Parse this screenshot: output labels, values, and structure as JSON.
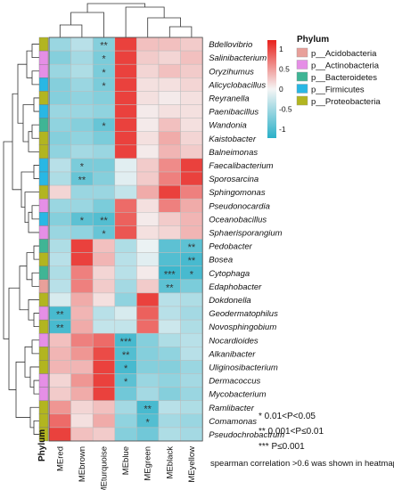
{
  "chart_data": {
    "type": "heatmap",
    "rows": [
      "Bdellovibrio",
      "Salinibacterium",
      "Oryzihumus",
      "Alicyclobacillus",
      "Reyranella",
      "Paenibacillus",
      "Wandonia",
      "Kaistobacter",
      "Balneimonas",
      "Faecalibacterium",
      "Sporosarcina",
      "Sphingomonas",
      "Pseudonocardia",
      "Oceanobacillus",
      "Sphaerisporangium",
      "Pedobacter",
      "Bosea",
      "Cytophaga",
      "Edaphobacter",
      "Dokdonella",
      "Geodermatophilus",
      "Novosphingobium",
      "Nocardioides",
      "Alkanibacter",
      "Uliginosibacterium",
      "Dermacoccus",
      "Mycobacterium",
      "Ramlibacter",
      "Comamonas",
      "Pseudochrobactrum"
    ],
    "columns": [
      "MEred",
      "MEbrown",
      "MEturquoise",
      "MEblue",
      "MEgreen",
      "MEblack",
      "MEyellow"
    ],
    "values": [
      [
        -0.45,
        -0.3,
        -0.55,
        0.85,
        0.25,
        0.25,
        0.2
      ],
      [
        -0.55,
        -0.4,
        -0.6,
        0.85,
        0.2,
        0.15,
        0.25
      ],
      [
        -0.45,
        -0.35,
        -0.6,
        0.85,
        0.15,
        0.25,
        0.2
      ],
      [
        -0.55,
        -0.45,
        -0.6,
        0.85,
        0.1,
        0.1,
        0.15
      ],
      [
        -0.55,
        -0.5,
        -0.55,
        0.85,
        0.1,
        0.05,
        0.1
      ],
      [
        -0.45,
        -0.45,
        -0.5,
        0.85,
        0.05,
        0.1,
        0.1
      ],
      [
        -0.5,
        -0.55,
        -0.7,
        0.85,
        0.05,
        0.25,
        0.1
      ],
      [
        -0.55,
        -0.5,
        -0.6,
        0.85,
        0.1,
        0.35,
        0.15
      ],
      [
        -0.5,
        -0.4,
        -0.45,
        0.85,
        0.05,
        0.3,
        0.2
      ],
      [
        -0.3,
        -0.6,
        -0.6,
        -0.1,
        0.2,
        0.5,
        0.85
      ],
      [
        -0.35,
        -0.7,
        -0.55,
        -0.1,
        0.2,
        0.55,
        0.85
      ],
      [
        0.15,
        -0.45,
        -0.45,
        -0.25,
        0.35,
        0.85,
        0.55
      ],
      [
        -0.45,
        -0.45,
        -0.6,
        0.65,
        0.1,
        0.55,
        0.35
      ],
      [
        -0.55,
        -0.75,
        -0.8,
        0.7,
        0.05,
        0.2,
        0.3
      ],
      [
        -0.45,
        -0.5,
        -0.7,
        0.75,
        0.1,
        0.15,
        0.3
      ],
      [
        -0.35,
        0.85,
        0.25,
        -0.35,
        -0.05,
        -0.75,
        -0.75
      ],
      [
        -0.3,
        0.85,
        0.3,
        -0.3,
        -0.1,
        -0.8,
        -0.85
      ],
      [
        -0.35,
        0.55,
        0.15,
        -0.3,
        0.05,
        -0.9,
        -0.85
      ],
      [
        -0.3,
        0.55,
        0.2,
        -0.4,
        0.2,
        -0.75,
        -0.6
      ],
      [
        -0.15,
        0.35,
        0.1,
        -0.5,
        0.85,
        -0.3,
        -0.35
      ],
      [
        -0.85,
        0.3,
        -0.3,
        -0.15,
        0.7,
        -0.3,
        -0.4
      ],
      [
        -0.85,
        0.35,
        -0.25,
        -0.25,
        0.65,
        -0.2,
        -0.35
      ],
      [
        0.25,
        0.55,
        0.65,
        -0.85,
        -0.55,
        -0.35,
        -0.3
      ],
      [
        0.3,
        0.45,
        0.8,
        -0.8,
        -0.55,
        -0.5,
        -0.3
      ],
      [
        0.3,
        0.3,
        0.85,
        -0.85,
        -0.55,
        -0.55,
        -0.45
      ],
      [
        0.15,
        0.45,
        0.85,
        -0.75,
        -0.45,
        -0.5,
        -0.4
      ],
      [
        0.2,
        0.35,
        0.85,
        -0.65,
        -0.4,
        -0.55,
        -0.45
      ],
      [
        0.45,
        0.15,
        0.25,
        -0.4,
        -0.85,
        -0.3,
        -0.35
      ],
      [
        0.65,
        0.1,
        0.35,
        -0.5,
        -0.8,
        -0.4,
        -0.45
      ],
      [
        0.85,
        0.25,
        0.2,
        -0.55,
        -0.65,
        -0.35,
        -0.4
      ]
    ],
    "significance": [
      [
        "",
        "",
        "**",
        "",
        "",
        "",
        ""
      ],
      [
        "",
        "",
        "*",
        "",
        "",
        "",
        ""
      ],
      [
        "",
        "",
        "*",
        "",
        "",
        "",
        ""
      ],
      [
        "",
        "",
        "*",
        "",
        "",
        "",
        ""
      ],
      [
        "",
        "",
        "",
        "",
        "",
        "",
        ""
      ],
      [
        "",
        "",
        "",
        "",
        "",
        "",
        ""
      ],
      [
        "",
        "",
        "*",
        "",
        "",
        "",
        ""
      ],
      [
        "",
        "",
        "",
        "",
        "",
        "",
        ""
      ],
      [
        "",
        "",
        "",
        "",
        "",
        "",
        ""
      ],
      [
        "",
        "*",
        "",
        "",
        "",
        "",
        ""
      ],
      [
        "",
        "**",
        "",
        "",
        "",
        "",
        ""
      ],
      [
        "",
        "",
        "",
        "",
        "",
        "",
        ""
      ],
      [
        "",
        "",
        "",
        "",
        "",
        "",
        ""
      ],
      [
        "",
        "*",
        "**",
        "",
        "",
        "",
        ""
      ],
      [
        "",
        "",
        "*",
        "",
        "",
        "",
        ""
      ],
      [
        "",
        "",
        "",
        "",
        "",
        "",
        "**"
      ],
      [
        "",
        "",
        "",
        "",
        "",
        "",
        "**"
      ],
      [
        "",
        "",
        "",
        "",
        "",
        "***",
        "*"
      ],
      [
        "",
        "",
        "",
        "",
        "",
        "**",
        ""
      ],
      [
        "",
        "",
        "",
        "",
        "",
        "",
        ""
      ],
      [
        "**",
        "",
        "",
        "",
        "",
        "",
        ""
      ],
      [
        "**",
        "",
        "",
        "",
        "",
        "",
        ""
      ],
      [
        "",
        "",
        "",
        "***",
        "",
        "",
        ""
      ],
      [
        "",
        "",
        "",
        "**",
        "",
        "",
        ""
      ],
      [
        "",
        "",
        "",
        "*",
        "",
        "",
        ""
      ],
      [
        "",
        "",
        "",
        "*",
        "",
        "",
        ""
      ],
      [
        "",
        "",
        "",
        "",
        "",
        "",
        ""
      ],
      [
        "",
        "",
        "",
        "",
        "**",
        "",
        ""
      ],
      [
        "",
        "",
        "",
        "",
        "*",
        "",
        ""
      ],
      [
        "",
        "",
        "",
        "",
        "",
        "",
        ""
      ]
    ],
    "phylum_annotation": [
      "p__Proteobacteria",
      "p__Actinobacteria",
      "p__Actinobacteria",
      "p__Firmicutes",
      "p__Proteobacteria",
      "p__Firmicutes",
      "p__Bacteroidetes",
      "p__Proteobacteria",
      "p__Proteobacteria",
      "p__Firmicutes",
      "p__Firmicutes",
      "p__Proteobacteria",
      "p__Actinobacteria",
      "p__Firmicutes",
      "p__Actinobacteria",
      "p__Bacteroidetes",
      "p__Proteobacteria",
      "p__Bacteroidetes",
      "p__Acidobacteria",
      "p__Proteobacteria",
      "p__Actinobacteria",
      "p__Proteobacteria",
      "p__Actinobacteria",
      "p__Proteobacteria",
      "p__Proteobacteria",
      "p__Actinobacteria",
      "p__Actinobacteria",
      "p__Proteobacteria",
      "p__Proteobacteria",
      "p__Proteobacteria"
    ],
    "annotation_title": "Phylum",
    "annotation_label": "Phylum",
    "legend_entries": [
      {
        "name": "p__Acidobacteria",
        "color": "#e8a09a"
      },
      {
        "name": "p__Actinobacteria",
        "color": "#e58fe6"
      },
      {
        "name": "p__Bacteroidetes",
        "color": "#3fb595"
      },
      {
        "name": "p__Firmicutes",
        "color": "#29b7e4"
      },
      {
        "name": "p__Proteobacteria",
        "color": "#b2b520"
      }
    ],
    "colorbar": {
      "range": [
        -1,
        1
      ],
      "ticks": [
        "1",
        "0.5",
        "0",
        "-0.5",
        "-1"
      ],
      "colors": {
        "low": "#2ab0c8",
        "mid": "#f5f5f5",
        "high": "#e8211c"
      }
    },
    "notes": [
      {
        "sym": "*",
        "text": "0.01<P<0.05"
      },
      {
        "sym": "**",
        "text": "0.001<P≤0.01"
      },
      {
        "sym": "***",
        "text": "P≤0.001"
      }
    ],
    "footnote": "spearman correlation >0.6 was shown in heatmap"
  }
}
